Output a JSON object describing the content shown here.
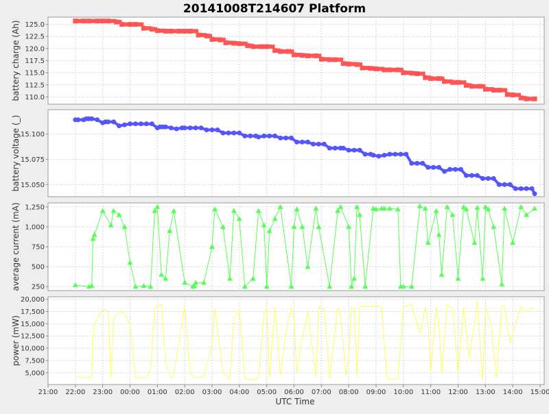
{
  "chart_data": {
    "type": "line",
    "title": "20141008T214607 Platform",
    "xlabel": "UTC Time",
    "x_ticks": [
      "21:00",
      "22:00",
      "23:00",
      "00:00",
      "01:00",
      "02:00",
      "03:00",
      "04:00",
      "05:00",
      "06:00",
      "07:00",
      "08:00",
      "09:00",
      "10:00",
      "11:00",
      "12:00",
      "13:00",
      "14:00",
      "15:00"
    ],
    "x_range_hours": [
      0,
      18.15
    ],
    "grid": true,
    "panels": [
      {
        "ylabel": "battery charge (Ah)",
        "ylim": [
          108.5,
          126.5
        ],
        "yticks": [
          110.0,
          112.5,
          115.0,
          117.5,
          120.0,
          122.5,
          125.0
        ],
        "tick_labels": [
          "110.0",
          "112.5",
          "115.0",
          "117.5",
          "120.0",
          "122.5",
          "125.0"
        ],
        "color": "#ff5555",
        "marker": "square",
        "series": [
          {
            "x": [
              1.0,
              1.3,
              1.5,
              1.8,
              2.0,
              2.2,
              2.5,
              2.7,
              3.0,
              3.2,
              3.5,
              3.8,
              4.0,
              4.3,
              4.5,
              4.8,
              5.0,
              5.2,
              5.5,
              5.8,
              6.0,
              6.3,
              6.5,
              6.8,
              7.0,
              7.3,
              7.5,
              7.8,
              8.0,
              8.3,
              8.5,
              8.8,
              9.0,
              9.3,
              9.5,
              9.8,
              10.0,
              10.3,
              10.5,
              10.8,
              11.0,
              11.3,
              11.5,
              11.8,
              12.0,
              12.3,
              12.5,
              12.8,
              13.0,
              13.3,
              13.5,
              13.8,
              14.0,
              14.3,
              14.5,
              14.8,
              15.0,
              15.3,
              15.5,
              15.8,
              16.0,
              16.3,
              16.5,
              16.8,
              17.0,
              17.3,
              17.5,
              17.8
            ],
            "y": [
              125.7,
              125.7,
              125.7,
              125.7,
              125.7,
              125.7,
              125.5,
              125.0,
              125.0,
              125.0,
              124.2,
              124.0,
              123.7,
              123.6,
              123.6,
              123.6,
              123.6,
              123.6,
              122.8,
              122.6,
              121.9,
              121.8,
              121.2,
              121.1,
              121.0,
              120.6,
              120.4,
              120.4,
              120.4,
              119.6,
              119.4,
              119.4,
              118.7,
              118.6,
              118.5,
              118.5,
              117.8,
              117.7,
              117.7,
              116.9,
              116.8,
              116.7,
              116.0,
              115.9,
              115.8,
              115.6,
              115.6,
              115.6,
              115.0,
              114.9,
              114.8,
              114.0,
              113.8,
              113.8,
              113.2,
              113.0,
              113.0,
              112.4,
              112.2,
              112.2,
              111.6,
              111.4,
              111.4,
              110.5,
              110.4,
              109.8,
              109.6,
              109.6
            ]
          }
        ]
      },
      {
        "ylabel": "battery voltage (_)",
        "ylim": [
          15.038,
          15.124
        ],
        "yticks": [
          15.05,
          15.075,
          15.1
        ],
        "tick_labels": [
          "15.050",
          "15.075",
          "15.100"
        ],
        "color": "#5555ff",
        "marker": "circle",
        "series": [
          {
            "x": [
              1.0,
              1.1,
              1.3,
              1.4,
              1.5,
              1.6,
              1.8,
              2.0,
              2.1,
              2.2,
              2.4,
              2.6,
              2.8,
              3.0,
              3.2,
              3.4,
              3.6,
              3.8,
              4.0,
              4.1,
              4.2,
              4.3,
              4.5,
              4.7,
              4.9,
              5.0,
              5.2,
              5.4,
              5.6,
              5.8,
              6.0,
              6.2,
              6.4,
              6.6,
              6.8,
              7.0,
              7.2,
              7.4,
              7.6,
              7.7,
              7.9,
              8.1,
              8.3,
              8.5,
              8.7,
              8.9,
              9.1,
              9.3,
              9.5,
              9.7,
              9.9,
              10.1,
              10.3,
              10.5,
              10.7,
              10.8,
              11.0,
              11.2,
              11.4,
              11.6,
              11.8,
              11.9,
              12.1,
              12.3,
              12.5,
              12.7,
              12.9,
              13.1,
              13.3,
              13.5,
              13.7,
              13.9,
              14.1,
              14.3,
              14.5,
              14.7,
              14.9,
              15.1,
              15.3,
              15.5,
              15.7,
              15.9,
              16.1,
              16.3,
              16.5,
              16.7,
              16.9,
              17.1,
              17.3,
              17.5,
              17.7,
              17.8
            ],
            "y": [
              15.114,
              15.114,
              15.114,
              15.115,
              15.115,
              15.115,
              15.114,
              15.111,
              15.112,
              15.112,
              15.112,
              15.108,
              15.109,
              15.11,
              15.11,
              15.11,
              15.11,
              15.11,
              15.106,
              15.107,
              15.107,
              15.107,
              15.106,
              15.105,
              15.106,
              15.106,
              15.106,
              15.106,
              15.106,
              15.104,
              15.104,
              15.104,
              15.101,
              15.101,
              15.101,
              15.101,
              15.098,
              15.098,
              15.098,
              15.097,
              15.098,
              15.098,
              15.098,
              15.096,
              15.096,
              15.096,
              15.092,
              15.092,
              15.092,
              15.09,
              15.09,
              15.09,
              15.086,
              15.086,
              15.086,
              15.086,
              15.084,
              15.084,
              15.084,
              15.08,
              15.08,
              15.079,
              15.078,
              15.079,
              15.08,
              15.08,
              15.08,
              15.08,
              15.071,
              15.071,
              15.071,
              15.067,
              15.067,
              15.067,
              15.063,
              15.065,
              15.065,
              15.065,
              15.059,
              15.059,
              15.059,
              15.056,
              15.056,
              15.056,
              15.05,
              15.05,
              15.05,
              15.046,
              15.046,
              15.046,
              15.046,
              15.041
            ]
          }
        ]
      },
      {
        "ylabel": "average current (mA)",
        "ylim": [
          200,
          1300
        ],
        "yticks": [
          250,
          500,
          750,
          1000,
          1250
        ],
        "tick_labels": [
          "250",
          "500",
          "750",
          "1,000",
          "1,250"
        ],
        "color": "#55ff55",
        "marker": "triangle",
        "series": [
          {
            "x": [
              1.0,
              1.5,
              1.6,
              1.65,
              1.7,
              2.0,
              2.3,
              2.4,
              2.6,
              2.8,
              3.0,
              3.2,
              3.5,
              3.75,
              3.9,
              4.0,
              4.15,
              4.3,
              4.45,
              4.6,
              5.0,
              5.3,
              5.35,
              5.4,
              5.7,
              6.0,
              6.1,
              6.4,
              6.65,
              6.8,
              7.0,
              7.2,
              7.5,
              7.7,
              7.9,
              8.0,
              8.1,
              8.3,
              8.5,
              8.9,
              9.0,
              9.1,
              9.3,
              9.5,
              9.8,
              9.9,
              10.3,
              10.6,
              10.7,
              11.0,
              11.1,
              11.2,
              11.3,
              11.4,
              11.6,
              11.9,
              12.0,
              12.2,
              12.3,
              12.5,
              12.8,
              12.9,
              13.0,
              13.3,
              13.6,
              13.8,
              13.9,
              14.2,
              14.3,
              14.4,
              14.6,
              14.8,
              15.0,
              15.2,
              15.3,
              15.6,
              15.7,
              15.9,
              16.0,
              16.1,
              16.3,
              16.6,
              16.7,
              17.0,
              17.3,
              17.5,
              17.8
            ],
            "y": [
              270,
              250,
              260,
              850,
              900,
              1200,
              1020,
              1200,
              1150,
              1000,
              550,
              250,
              260,
              250,
              1200,
              1250,
              400,
              350,
              950,
              1200,
              300,
              250,
              260,
              300,
              300,
              750,
              1220,
              1000,
              350,
              1200,
              1100,
              250,
              350,
              1200,
              1020,
              250,
              950,
              1100,
              1250,
              250,
              1000,
              1220,
              1000,
              500,
              1230,
              1000,
              250,
              1200,
              1250,
              1000,
              250,
              350,
              1250,
              1150,
              250,
              1230,
              1220,
              1230,
              1230,
              1230,
              1220,
              250,
              250,
              250,
              1260,
              1230,
              800,
              1200,
              900,
              400,
              1250,
              1150,
              350,
              1250,
              1220,
              800,
              1240,
              350,
              1250,
              1220,
              1000,
              280,
              1230,
              800,
              1250,
              1150,
              1230
            ]
          }
        ]
      },
      {
        "ylabel": "power (mW)",
        "ylim": [
          2600,
          20500
        ],
        "yticks": [
          5000,
          7500,
          10000,
          12500,
          15000,
          17500,
          20000
        ],
        "tick_labels": [
          "5,000",
          "7,500",
          "10,000",
          "12,500",
          "15,000",
          "17,500",
          "20,000"
        ],
        "color": "#ffff55",
        "marker": "none",
        "series": [
          {
            "x": [
              1.0,
              1.5,
              1.6,
              1.65,
              1.7,
              2.0,
              2.2,
              2.3,
              2.4,
              2.6,
              2.8,
              3.0,
              3.2,
              3.6,
              3.75,
              3.9,
              4.0,
              4.15,
              4.3,
              4.5,
              4.6,
              5.0,
              5.2,
              5.35,
              5.4,
              5.7,
              6.0,
              6.1,
              6.4,
              6.65,
              6.8,
              7.0,
              7.2,
              7.5,
              7.7,
              7.9,
              8.0,
              8.1,
              8.3,
              8.5,
              8.7,
              8.9,
              9.0,
              9.1,
              9.3,
              9.5,
              9.8,
              9.9,
              10.1,
              10.3,
              10.6,
              10.7,
              10.9,
              11.0,
              11.1,
              11.2,
              11.3,
              11.4,
              11.6,
              11.9,
              12.0,
              12.2,
              12.4,
              12.6,
              12.8,
              13.0,
              13.3,
              13.6,
              13.8,
              13.9,
              14.0,
              14.2,
              14.3,
              14.4,
              14.6,
              14.8,
              15.0,
              15.2,
              15.4,
              15.6,
              15.7,
              15.9,
              16.0,
              16.2,
              16.4,
              16.6,
              16.7,
              16.9,
              17.1,
              17.3,
              17.5,
              17.8
            ],
            "y": [
              4200,
              4000,
              4100,
              12500,
              15000,
              18000,
              17500,
              4000,
              16000,
              17500,
              17000,
              15000,
              3900,
              4000,
              6000,
              18200,
              18500,
              19000,
              7000,
              3800,
              4500,
              18500,
              4800,
              4200,
              4000,
              4200,
              11000,
              18000,
              5000,
              3700,
              16000,
              18000,
              3700,
              3600,
              3800,
              17000,
              18300,
              4000,
              18500,
              4600,
              13000,
              18500,
              16000,
              5000,
              12000,
              17500,
              4200,
              18500,
              18000,
              3900,
              18300,
              17000,
              4500,
              8000,
              18500,
              18000,
              4000,
              18500,
              18500,
              18500,
              18500,
              18500,
              3700,
              3700,
              3700,
              18500,
              19000,
              13000,
              18500,
              15000,
              5000,
              18500,
              15000,
              5000,
              19000,
              18000,
              5000,
              18500,
              8000,
              15000,
              19500,
              3500,
              18500,
              15000,
              4000,
              18500,
              18500,
              11000,
              15000,
              18500,
              17500,
              18500
            ]
          }
        ]
      }
    ]
  }
}
